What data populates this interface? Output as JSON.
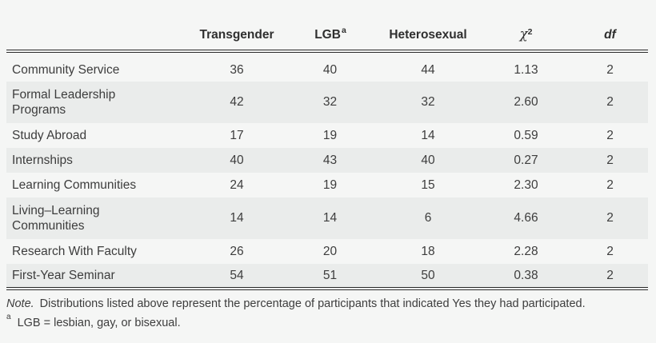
{
  "table": {
    "headers": {
      "transgender": "Transgender",
      "lgb": "LGB",
      "lgb_superscript": "a",
      "heterosexual": "Heterosexual",
      "chi_symbol": "χ",
      "chi_superscript": "2",
      "df": "df"
    },
    "rows": [
      {
        "label": "Community Service",
        "label2": "",
        "transgender": "36",
        "lgb": "40",
        "heterosexual": "44",
        "chi_square": "1.13",
        "df": "2"
      },
      {
        "label": "Formal Leadership",
        "label2": "Programs",
        "transgender": "42",
        "lgb": "32",
        "heterosexual": "32",
        "chi_square": "2.60",
        "df": "2"
      },
      {
        "label": "Study Abroad",
        "label2": "",
        "transgender": "17",
        "lgb": "19",
        "heterosexual": "14",
        "chi_square": "0.59",
        "df": "2"
      },
      {
        "label": "Internships",
        "label2": "",
        "transgender": "40",
        "lgb": "43",
        "heterosexual": "40",
        "chi_square": "0.27",
        "df": "2"
      },
      {
        "label": "Learning Communities",
        "label2": "",
        "transgender": "24",
        "lgb": "19",
        "heterosexual": "15",
        "chi_square": "2.30",
        "df": "2"
      },
      {
        "label": "Living–Learning",
        "label2": "Communities",
        "transgender": "14",
        "lgb": "14",
        "heterosexual": "6",
        "chi_square": "4.66",
        "df": "2"
      },
      {
        "label": "Research With Faculty",
        "label2": "",
        "transgender": "26",
        "lgb": "20",
        "heterosexual": "18",
        "chi_square": "2.28",
        "df": "2"
      },
      {
        "label": "First-Year Seminar",
        "label2": "",
        "transgender": "54",
        "lgb": "51",
        "heterosexual": "50",
        "chi_square": "0.38",
        "df": "2"
      }
    ]
  },
  "notes": {
    "note_label": "Note.",
    "note_text": "Distributions listed above represent the percentage of participants that indicated Yes they had participated.",
    "footnote_marker": "a",
    "footnote_text": "LGB = lesbian, gay, or bisexual."
  },
  "colors": {
    "page_background": "#f5f6f5",
    "stripe_background": "#eaeceb",
    "rule": "#2b2b2b",
    "text": "#3d3d3d"
  }
}
